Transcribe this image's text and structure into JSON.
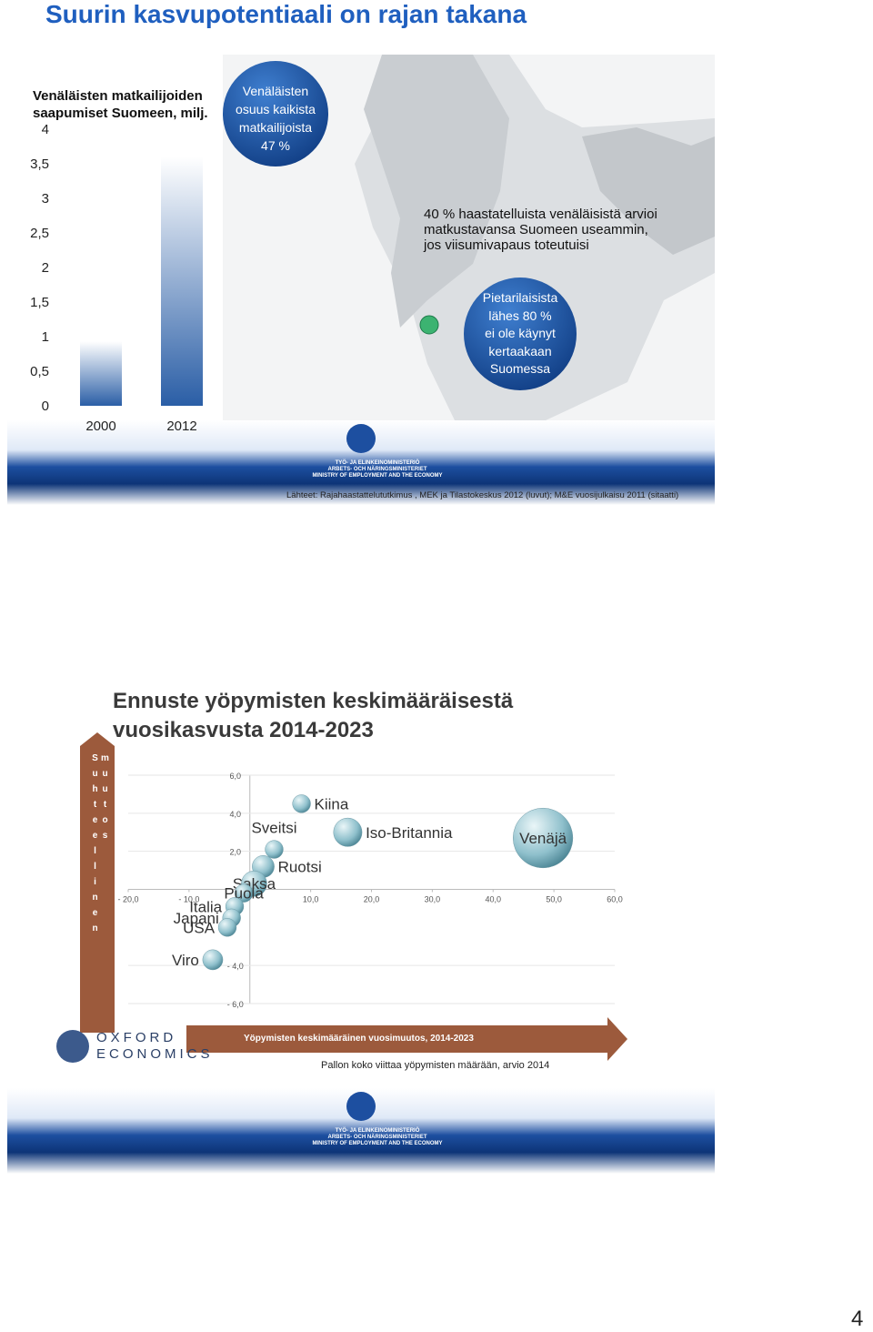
{
  "slide1": {
    "title": "Suurin kasvupotentiaali on rajan takana",
    "share_bubble": [
      "Venäläisten",
      "osuus kaikista",
      "matkailijoista",
      "47 %"
    ],
    "callout": [
      "40 % haastatelluista venäläisistä arvioi",
      "matkustavansa Suomeen useammin,",
      "jos viisumivapaus toteutuisi"
    ],
    "spb_bubble": [
      "Pietarilaisista",
      "lähes 80 %",
      "ei ole käynyt",
      "kertaakaan",
      "Suomessa"
    ],
    "source": "Lähteet: Rajahaastattelututkimus , MEK ja Tilastokeskus 2012 (luvut); M&E vuosijulkaisu 2011 (sitaatti)",
    "ministry": [
      "TYÖ- JA ELINKEINOMINISTERIÖ",
      "ARBETS- OCH NÄRINGSMINISTERIET",
      "MINISTRY OF EMPLOYMENT AND THE ECONOMY"
    ]
  },
  "slide2": {
    "logo": [
      "OXFORD",
      "ECONOMICS"
    ],
    "ministry": [
      "TYÖ- JA ELINKEINOMINISTERIÖ",
      "ARBETS- OCH NÄRINGSMINISTERIET",
      "MINISTRY OF EMPLOYMENT AND THE ECONOMY"
    ]
  },
  "page_number": "4",
  "chart_data": [
    {
      "type": "bar",
      "title": "Venäläisten matkailijoiden saapumiset Suomeen, milj.",
      "categories": [
        "2000",
        "2012"
      ],
      "values": [
        0.93,
        3.6
      ],
      "color": "#2a5ea6",
      "ylim": [
        0,
        4
      ],
      "yticks": [
        0,
        {
          "value": 0.5,
          "label": "0,5"
        },
        1,
        {
          "value": 1.5,
          "label": "1,5"
        },
        2,
        {
          "value": 2.5,
          "label": "2,5"
        },
        3,
        {
          "value": 3.5,
          "label": "3,5"
        },
        4
      ]
    },
    {
      "type": "bubble",
      "title": "Ennuste yöpymisten keskimääräisestä vuosikasvusta 2014-2023",
      "xlabel": "Yöpymisten keskimääräinen vuosimuutos, 2014-2023",
      "ylabel": "Suhteellinen muutos",
      "note": "Pallon koko viittaa yöpymisten määrään, arvio 2014",
      "labels": [
        "Kiina",
        "Sveitsi",
        "Ruotsi",
        "Saksa",
        "Puola",
        "Italia",
        "Japani",
        "USA",
        "Viro",
        "Iso-Britannia",
        "Venäjä"
      ],
      "x": [
        8.5,
        4.0,
        2.2,
        0.7,
        -1.0,
        -2.5,
        -3.0,
        -3.7,
        -6.1,
        16.1,
        48.2
      ],
      "values": [
        4.5,
        2.1,
        1.2,
        0.3,
        -0.2,
        -0.9,
        -1.5,
        -2.0,
        -3.7,
        3.0,
        2.7
      ],
      "sizes": [
        2,
        2,
        3,
        4,
        2,
        2,
        2,
        2,
        2.5,
        5,
        22
      ],
      "color": "#6aa3b2",
      "xlim": [
        -20,
        60
      ],
      "ylim": [
        -6,
        6
      ],
      "xticks": [
        {
          "value": -20,
          "label": "- 20,0"
        },
        {
          "value": -10,
          "label": "- 10,0"
        },
        {
          "value": 10,
          "label": "10,0"
        },
        {
          "value": 20,
          "label": "20,0"
        },
        {
          "value": 30,
          "label": "30,0"
        },
        {
          "value": 40,
          "label": "40,0"
        },
        {
          "value": 50,
          "label": "50,0"
        },
        {
          "value": 60,
          "label": "60,0"
        }
      ],
      "yticks": [
        {
          "value": -6,
          "label": "- 6,0"
        },
        {
          "value": -4,
          "label": "- 4,0"
        },
        {
          "value": 2,
          "label": "2,0"
        },
        {
          "value": 4,
          "label": "4,0"
        },
        {
          "value": 6,
          "label": "6,0"
        }
      ],
      "grid": true
    }
  ]
}
